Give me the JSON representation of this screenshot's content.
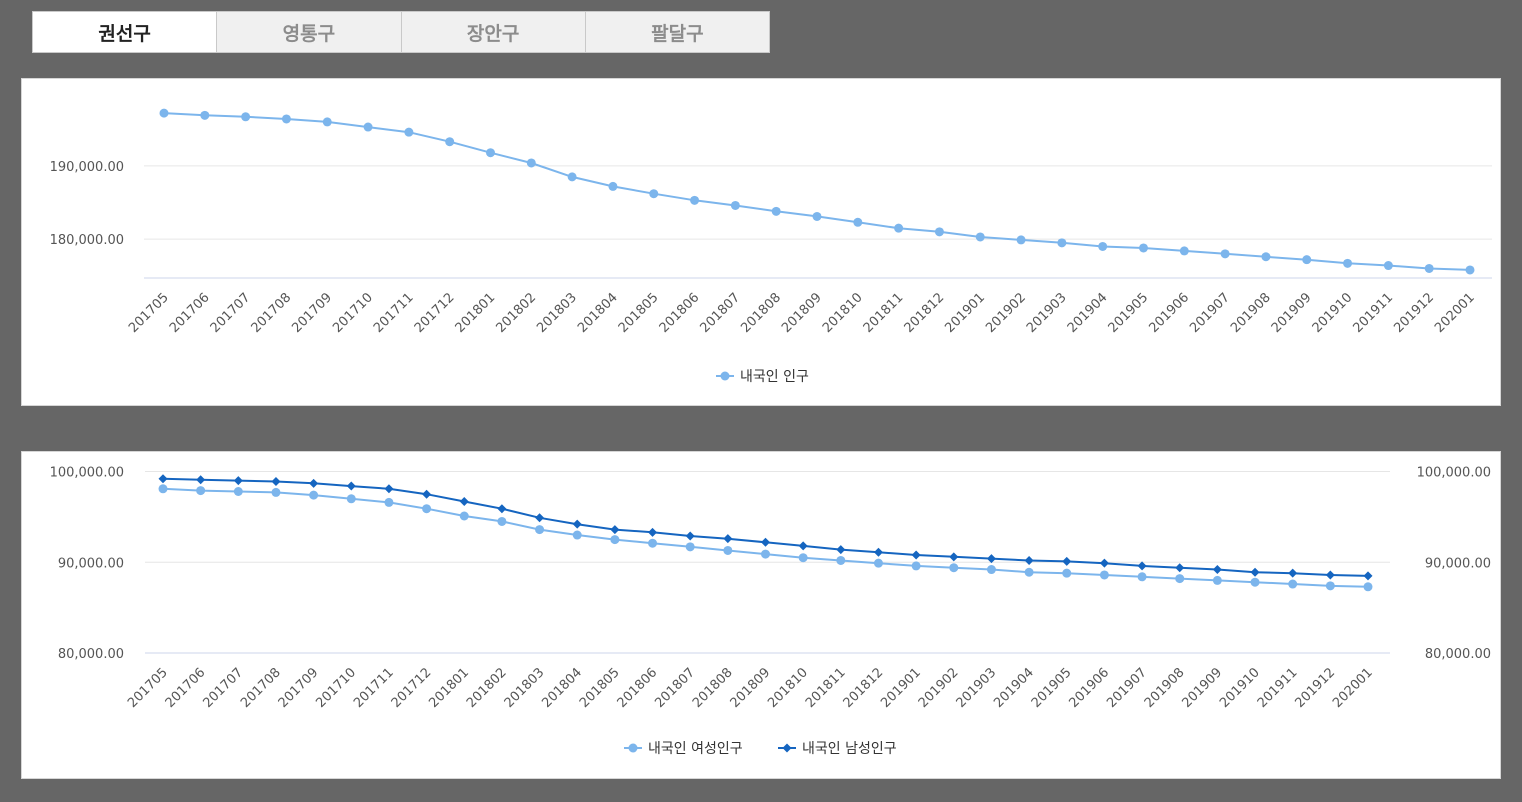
{
  "tabs": [
    {
      "label": "권선구",
      "active": true
    },
    {
      "label": "영통구",
      "active": false
    },
    {
      "label": "장안구",
      "active": false
    },
    {
      "label": "팔달구",
      "active": false
    }
  ],
  "colors": {
    "light": "#7cb5ec",
    "dark": "#1565c0"
  },
  "chart_data": [
    {
      "type": "line",
      "categories": [
        "201705",
        "201706",
        "201707",
        "201708",
        "201709",
        "201710",
        "201711",
        "201712",
        "201801",
        "201802",
        "201803",
        "201804",
        "201805",
        "201806",
        "201807",
        "201808",
        "201809",
        "201810",
        "201811",
        "201812",
        "201901",
        "201902",
        "201903",
        "201904",
        "201905",
        "201906",
        "201907",
        "201908",
        "201909",
        "201910",
        "201911",
        "201912",
        "202001"
      ],
      "ylim": [
        174700,
        197900
      ],
      "yticks": [
        180000,
        190000
      ],
      "ytick_labels": [
        "180,000.00",
        "190,000.00"
      ],
      "series": [
        {
          "name": "내국인 인구",
          "color": "#7cb5ec",
          "marker": "circle",
          "values": [
            197200,
            196900,
            196700,
            196400,
            196000,
            195300,
            194600,
            193300,
            191800,
            190400,
            188500,
            187200,
            186200,
            185300,
            184600,
            183800,
            183100,
            182300,
            181500,
            181000,
            180300,
            179900,
            179500,
            179000,
            178800,
            178400,
            178000,
            177600,
            177200,
            176700,
            176400,
            176000,
            175800
          ]
        }
      ]
    },
    {
      "type": "line",
      "categories": [
        "201705",
        "201706",
        "201707",
        "201708",
        "201709",
        "201710",
        "201711",
        "201712",
        "201801",
        "201802",
        "201803",
        "201804",
        "201805",
        "201806",
        "201807",
        "201808",
        "201809",
        "201810",
        "201811",
        "201812",
        "201901",
        "201902",
        "201903",
        "201904",
        "201905",
        "201906",
        "201907",
        "201908",
        "201909",
        "201910",
        "201911",
        "201912",
        "202001"
      ],
      "ylim": [
        80000,
        100500
      ],
      "yticks": [
        80000,
        90000,
        100000
      ],
      "ytick_labels": [
        "80,000.00",
        "90,000.00",
        "100,000.00"
      ],
      "series": [
        {
          "name": "내국인 여성인구",
          "color": "#7cb5ec",
          "marker": "circle",
          "values": [
            98100,
            97900,
            97800,
            97700,
            97400,
            97000,
            96600,
            95900,
            95100,
            94500,
            93600,
            93000,
            92500,
            92100,
            91700,
            91300,
            90900,
            90500,
            90200,
            89900,
            89600,
            89400,
            89200,
            88900,
            88800,
            88600,
            88400,
            88200,
            88000,
            87800,
            87600,
            87400,
            87300
          ]
        },
        {
          "name": "내국인 남성인구",
          "color": "#1565c0",
          "marker": "diamond",
          "values": [
            99200,
            99100,
            99000,
            98900,
            98700,
            98400,
            98100,
            97500,
            96700,
            95900,
            94900,
            94200,
            93600,
            93300,
            92900,
            92600,
            92200,
            91800,
            91400,
            91100,
            90800,
            90600,
            90400,
            90200,
            90100,
            89900,
            89600,
            89400,
            89200,
            88900,
            88800,
            88600,
            88500
          ]
        }
      ]
    }
  ]
}
